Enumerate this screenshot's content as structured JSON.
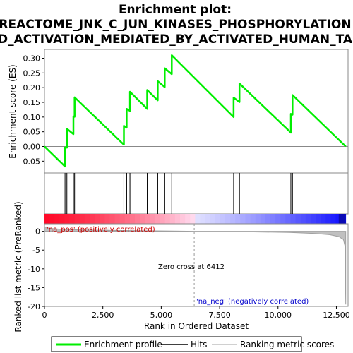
{
  "chart_data": {
    "type": "line",
    "title_lines": [
      "Enrichment plot:",
      "REACTOME_JNK_C_JUN_KINASES_PHOSPHORYLATION",
      "D_ACTIVATION_MEDIATED_BY_ACTIVATED_HUMAN_TA"
    ],
    "xlabel": "Rank in Ordered Dataset",
    "ylabel_top": "Enrichment score (ES)",
    "ylabel_bottom": "Ranked list metric (PreRanked)",
    "xlim": [
      0,
      13000
    ],
    "x_ticks": [
      0,
      2500,
      5000,
      7500,
      10000,
      12500
    ],
    "x_tick_labels": [
      "0",
      "2,500",
      "5,000",
      "7,500",
      "10,000",
      "12,500"
    ],
    "es_ylim": [
      -0.09,
      0.33
    ],
    "es_ticks": [
      -0.05,
      0.0,
      0.05,
      0.1,
      0.15,
      0.2,
      0.25,
      0.3
    ],
    "es_tick_labels": [
      "-0.05",
      "0.00",
      "0.05",
      "0.10",
      "0.15",
      "0.20",
      "0.25",
      "0.30"
    ],
    "metric_ylim": [
      -20,
      2
    ],
    "metric_ticks": [
      0,
      -5,
      -10,
      -15,
      -20
    ],
    "metric_tick_labels": [
      "0",
      "-5",
      "-10",
      "-15",
      "-20"
    ],
    "n_genes": 12900,
    "zero_cross": 6412,
    "zero_cross_label": "Zero cross at 6412",
    "pos_label": "'na_pos' (positively correlated)",
    "neg_label": "'na_neg' (negatively correlated)",
    "hits": [
      880,
      960,
      1240,
      1290,
      3400,
      3520,
      3660,
      4400,
      4850,
      5150,
      5450,
      8100,
      8350,
      10550,
      10620
    ],
    "series": [
      {
        "name": "Enrichment profile",
        "color": "#00ee00",
        "x": [
          0,
          880,
          880,
          960,
          960,
          1240,
          1240,
          1290,
          1290,
          3400,
          3400,
          3520,
          3520,
          3660,
          3660,
          4400,
          4400,
          4850,
          4850,
          5150,
          5150,
          5450,
          5450,
          8100,
          8100,
          8350,
          8350,
          10550,
          10550,
          10620,
          10620,
          12900
        ],
        "y": [
          0.0,
          -0.068,
          -0.003,
          -0.004,
          0.06,
          0.042,
          0.102,
          0.101,
          0.167,
          0.006,
          0.07,
          0.064,
          0.128,
          0.121,
          0.186,
          0.128,
          0.192,
          0.157,
          0.222,
          0.202,
          0.266,
          0.246,
          0.31,
          0.1,
          0.166,
          0.151,
          0.214,
          0.047,
          0.111,
          0.108,
          0.175,
          0.0
        ]
      },
      {
        "name": "Hits",
        "color": "#000000"
      },
      {
        "name": "Ranking metric scores",
        "color": "#c0c0c0"
      }
    ],
    "metric_profile": {
      "x": [
        0,
        200,
        800,
        2000,
        4000,
        6412,
        8500,
        10500,
        11500,
        12200,
        12600,
        12800,
        12870,
        12900
      ],
      "y": [
        1.2,
        0.8,
        0.5,
        0.3,
        0.15,
        0.0,
        -0.12,
        -0.3,
        -0.55,
        -0.9,
        -1.4,
        -2.2,
        -4.0,
        -19.5
      ]
    },
    "legend_position": "bottom"
  }
}
